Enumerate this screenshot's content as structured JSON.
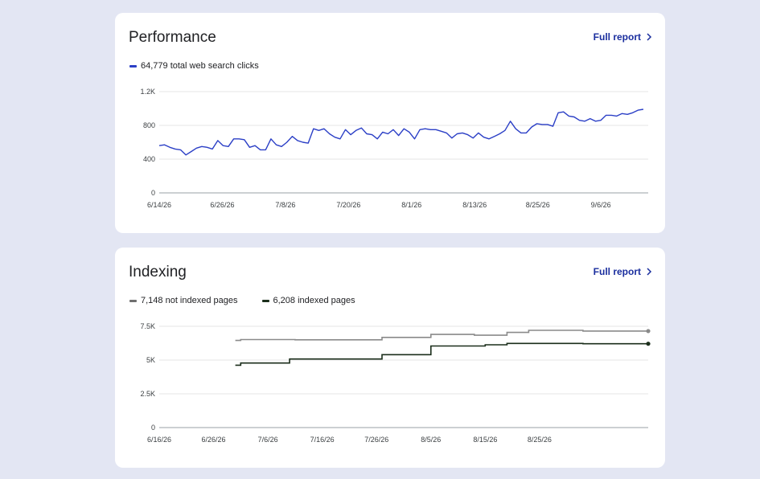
{
  "cards": [
    {
      "title": "Performance",
      "full_report_label": "Full report",
      "legend": [
        {
          "label": "64,779 total web search clicks",
          "color": "#2b3fc6"
        }
      ]
    },
    {
      "title": "Indexing",
      "full_report_label": "Full report",
      "legend": [
        {
          "label": "7,148 not indexed pages",
          "color": "#6f6f6f"
        },
        {
          "label": "6,208 indexed pages",
          "color": "#1b2e1b"
        }
      ]
    }
  ],
  "chart_data": [
    {
      "type": "line",
      "x_axis": "date",
      "x_start": "6/14/26",
      "x_end": "9/15/26",
      "xticks": [
        "6/14/26",
        "6/26/26",
        "7/8/26",
        "7/20/26",
        "8/1/26",
        "8/13/26",
        "8/25/26",
        "9/6/26"
      ],
      "yticks": [
        "0",
        "400",
        "800",
        "1.2K"
      ],
      "ylim": [
        0,
        1200
      ],
      "grid": true,
      "series": [
        {
          "name": "64,779 total web search clicks",
          "color": "#2b3fc6",
          "values": [
            560,
            570,
            540,
            520,
            510,
            450,
            490,
            530,
            550,
            540,
            520,
            620,
            560,
            550,
            640,
            640,
            630,
            540,
            560,
            510,
            510,
            640,
            570,
            550,
            600,
            670,
            620,
            600,
            590,
            760,
            740,
            760,
            700,
            660,
            640,
            750,
            690,
            740,
            770,
            700,
            690,
            640,
            720,
            700,
            750,
            680,
            760,
            720,
            640,
            750,
            760,
            750,
            750,
            730,
            710,
            650,
            700,
            710,
            690,
            650,
            710,
            660,
            640,
            670,
            700,
            740,
            850,
            760,
            710,
            710,
            780,
            820,
            810,
            810,
            790,
            950,
            960,
            910,
            900,
            860,
            850,
            880,
            850,
            860,
            920,
            920,
            910,
            940,
            930,
            950,
            980,
            990
          ]
        }
      ]
    },
    {
      "type": "line",
      "x_axis": "date",
      "x_start": "6/16/26",
      "x_end": "9/14/26",
      "xticks": [
        "6/16/26",
        "6/26/26",
        "7/6/26",
        "7/16/26",
        "7/26/26",
        "8/5/26",
        "8/15/26",
        "8/25/26"
      ],
      "yticks": [
        "0",
        "2.5K",
        "5K",
        "7.5K"
      ],
      "ylim": [
        0,
        7500
      ],
      "grid": true,
      "series": [
        {
          "name": "7,148 not indexed pages",
          "color": "#8a8a8a",
          "steps": [
            [
              "6/30/26",
              6450
            ],
            [
              "7/1/26",
              6520
            ],
            [
              "7/11/26",
              6500
            ],
            [
              "7/27/26",
              6680
            ],
            [
              "8/5/26",
              6900
            ],
            [
              "8/13/26",
              6840
            ],
            [
              "8/19/26",
              7050
            ],
            [
              "8/23/26",
              7200
            ],
            [
              "9/2/26",
              7148
            ],
            [
              "9/14/26",
              7148
            ]
          ]
        },
        {
          "name": "6,208 indexed pages",
          "color": "#1b2e1b",
          "steps": [
            [
              "6/30/26",
              4620
            ],
            [
              "7/1/26",
              4780
            ],
            [
              "7/10/26",
              5080
            ],
            [
              "7/27/26",
              5400
            ],
            [
              "8/5/26",
              6040
            ],
            [
              "8/15/26",
              6130
            ],
            [
              "8/19/26",
              6230
            ],
            [
              "9/2/26",
              6208
            ],
            [
              "9/14/26",
              6208
            ]
          ]
        }
      ]
    }
  ]
}
